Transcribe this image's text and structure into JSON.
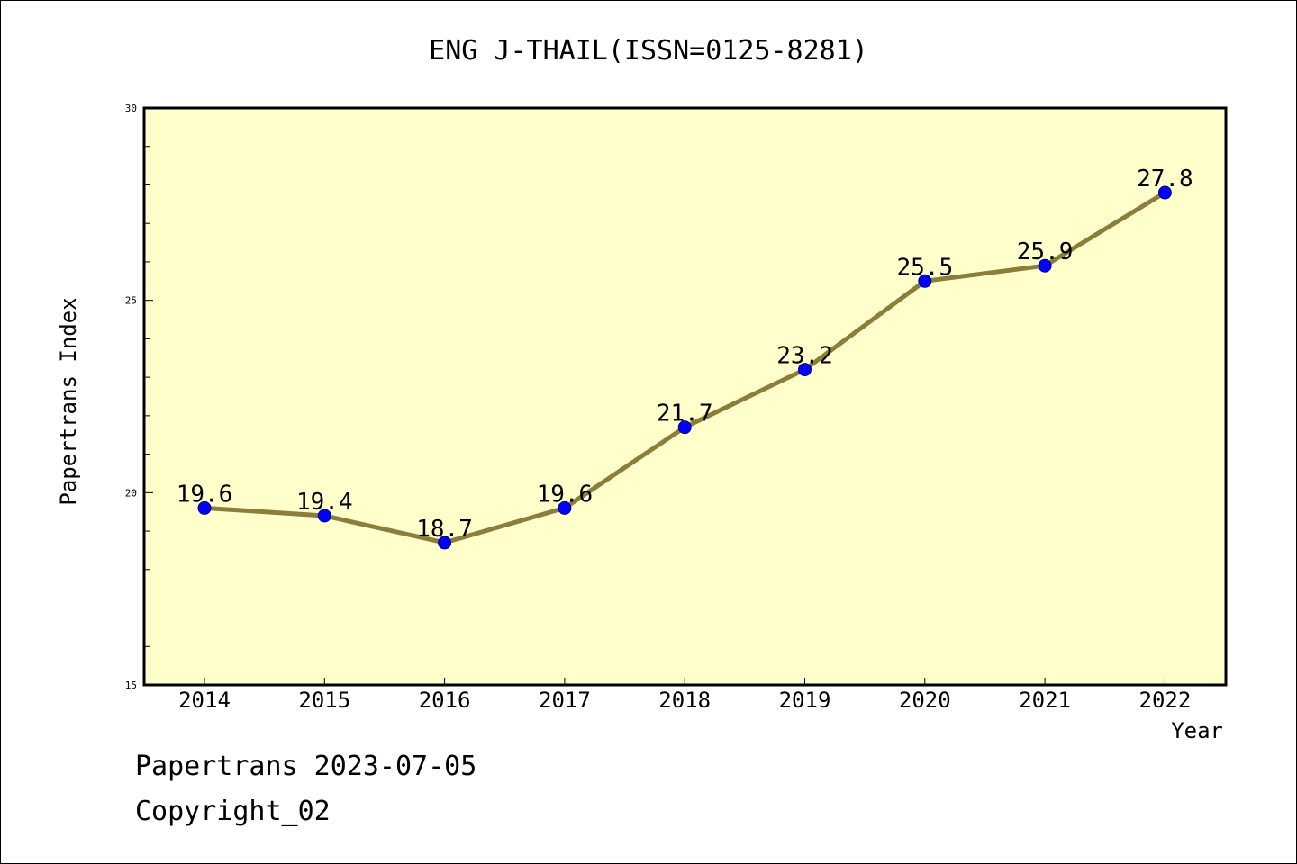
{
  "chart_data": {
    "type": "line",
    "title": "ENG J-THAIL(ISSN=0125-8281)",
    "xlabel": "Year",
    "ylabel": "Papertrans Index",
    "categories": [
      "2014",
      "2015",
      "2016",
      "2017",
      "2018",
      "2019",
      "2020",
      "2021",
      "2022"
    ],
    "series": [
      {
        "values": [
          19.6,
          19.4,
          18.7,
          19.6,
          21.7,
          23.2,
          25.5,
          25.9,
          27.8
        ],
        "labels": [
          "19.6",
          "19.4",
          "18.7",
          "19.6",
          "21.7",
          "23.2",
          "25.5",
          "25.9",
          "27.8"
        ]
      }
    ],
    "ylim": [
      15,
      30
    ],
    "yticks": [
      "15",
      "20",
      "25",
      "30"
    ],
    "grid": false,
    "legend": "none",
    "colors": {
      "plot_background": "#ffffcc",
      "line": "#8b7d3a",
      "marker": "#0000ff"
    }
  },
  "footer": {
    "line1": "Papertrans 2023-07-05",
    "line2": "Copyright_02"
  }
}
